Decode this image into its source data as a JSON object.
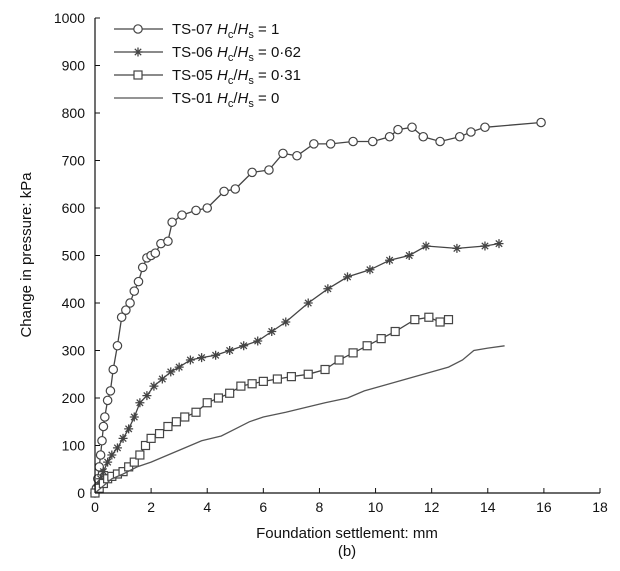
{
  "chart_data": {
    "type": "line",
    "xlabel": "Foundation settlement: mm",
    "ylabel": "Change in pressure: kPa",
    "caption": "(b)",
    "xlim": [
      0,
      18
    ],
    "ylim": [
      0,
      1000
    ],
    "xticks": [
      0,
      2,
      4,
      6,
      8,
      10,
      12,
      14,
      16,
      18
    ],
    "yticks": [
      0,
      100,
      200,
      300,
      400,
      500,
      600,
      700,
      800,
      900,
      1000
    ],
    "grid": false,
    "legend_position": "top-left",
    "series": [
      {
        "name": "TS-07 Hc/Hs = 1",
        "label": {
          "prefix": "TS-07 ",
          "h1": "H",
          "s1": "c",
          "h2": "H",
          "s2": "s",
          "suffix": " = 1"
        },
        "marker": "circle",
        "color": "#444444",
        "x": [
          0,
          0.05,
          0.1,
          0.15,
          0.2,
          0.25,
          0.3,
          0.35,
          0.45,
          0.55,
          0.65,
          0.8,
          0.95,
          1.1,
          1.25,
          1.4,
          1.55,
          1.7,
          1.85,
          2.0,
          2.15,
          2.35,
          2.6,
          2.75,
          3.1,
          3.6,
          4.0,
          4.6,
          5.0,
          5.6,
          6.2,
          6.7,
          7.2,
          7.8,
          8.4,
          9.2,
          9.9,
          10.5,
          10.8,
          11.3,
          11.7,
          12.3,
          13.0,
          13.4,
          13.9,
          15.9
        ],
        "y": [
          0,
          10,
          30,
          55,
          80,
          110,
          140,
          160,
          195,
          215,
          260,
          310,
          370,
          385,
          400,
          425,
          445,
          475,
          495,
          500,
          505,
          525,
          530,
          570,
          585,
          595,
          600,
          635,
          640,
          675,
          680,
          715,
          710,
          735,
          735,
          740,
          740,
          750,
          765,
          770,
          750,
          740,
          750,
          760,
          770,
          780
        ]
      },
      {
        "name": "TS-06 Hc/Hs = 0·62",
        "label": {
          "prefix": "TS-06 ",
          "h1": "H",
          "s1": "c",
          "h2": "H",
          "s2": "s",
          "suffix": " = 0·62"
        },
        "marker": "star",
        "color": "#444444",
        "x": [
          0,
          0.1,
          0.2,
          0.3,
          0.45,
          0.6,
          0.8,
          1.0,
          1.2,
          1.4,
          1.6,
          1.85,
          2.1,
          2.4,
          2.7,
          3.0,
          3.4,
          3.8,
          4.3,
          4.8,
          5.3,
          5.8,
          6.3,
          6.8,
          7.6,
          8.3,
          9.0,
          9.8,
          10.5,
          11.2,
          11.8,
          12.9,
          13.9,
          14.4
        ],
        "y": [
          0,
          15,
          30,
          45,
          65,
          80,
          95,
          115,
          135,
          160,
          190,
          205,
          225,
          240,
          255,
          265,
          280,
          285,
          290,
          300,
          310,
          320,
          340,
          360,
          400,
          430,
          455,
          470,
          490,
          500,
          520,
          515,
          520,
          525
        ]
      },
      {
        "name": "TS-05 Hc/Hs = 0·31",
        "label": {
          "prefix": "TS-05 ",
          "h1": "H",
          "s1": "c",
          "h2": "H",
          "s2": "s",
          "suffix": " = 0·31"
        },
        "marker": "square",
        "color": "#444444",
        "x": [
          0,
          0.15,
          0.3,
          0.45,
          0.6,
          0.8,
          1.0,
          1.2,
          1.4,
          1.6,
          1.8,
          2.0,
          2.3,
          2.6,
          2.9,
          3.2,
          3.6,
          4.0,
          4.4,
          4.8,
          5.2,
          5.6,
          6.0,
          6.5,
          7.0,
          7.6,
          8.2,
          8.7,
          9.2,
          9.7,
          10.2,
          10.7,
          11.4,
          11.9,
          12.3,
          12.6
        ],
        "y": [
          0,
          10,
          20,
          30,
          35,
          40,
          45,
          55,
          65,
          80,
          100,
          115,
          125,
          140,
          150,
          160,
          170,
          190,
          200,
          210,
          225,
          230,
          235,
          240,
          245,
          250,
          260,
          280,
          295,
          310,
          325,
          340,
          365,
          370,
          360,
          365
        ]
      },
      {
        "name": "TS-01 Hc/Hs = 0",
        "label": {
          "prefix": "TS-01 ",
          "h1": "H",
          "s1": "c",
          "h2": "H",
          "s2": "s",
          "suffix": " = 0"
        },
        "marker": "none",
        "color": "#555555",
        "x": [
          0,
          0.3,
          0.6,
          1.0,
          1.5,
          2.0,
          2.6,
          3.2,
          3.8,
          4.5,
          5.0,
          5.5,
          6.0,
          6.8,
          7.5,
          8.2,
          9.0,
          9.6,
          10.2,
          10.8,
          11.4,
          12.0,
          12.6,
          13.1,
          13.5,
          14.0,
          14.6
        ],
        "y": [
          0,
          15,
          30,
          40,
          55,
          65,
          80,
          95,
          110,
          120,
          135,
          150,
          160,
          170,
          180,
          190,
          200,
          215,
          225,
          235,
          245,
          255,
          265,
          280,
          300,
          305,
          310
        ]
      }
    ]
  }
}
